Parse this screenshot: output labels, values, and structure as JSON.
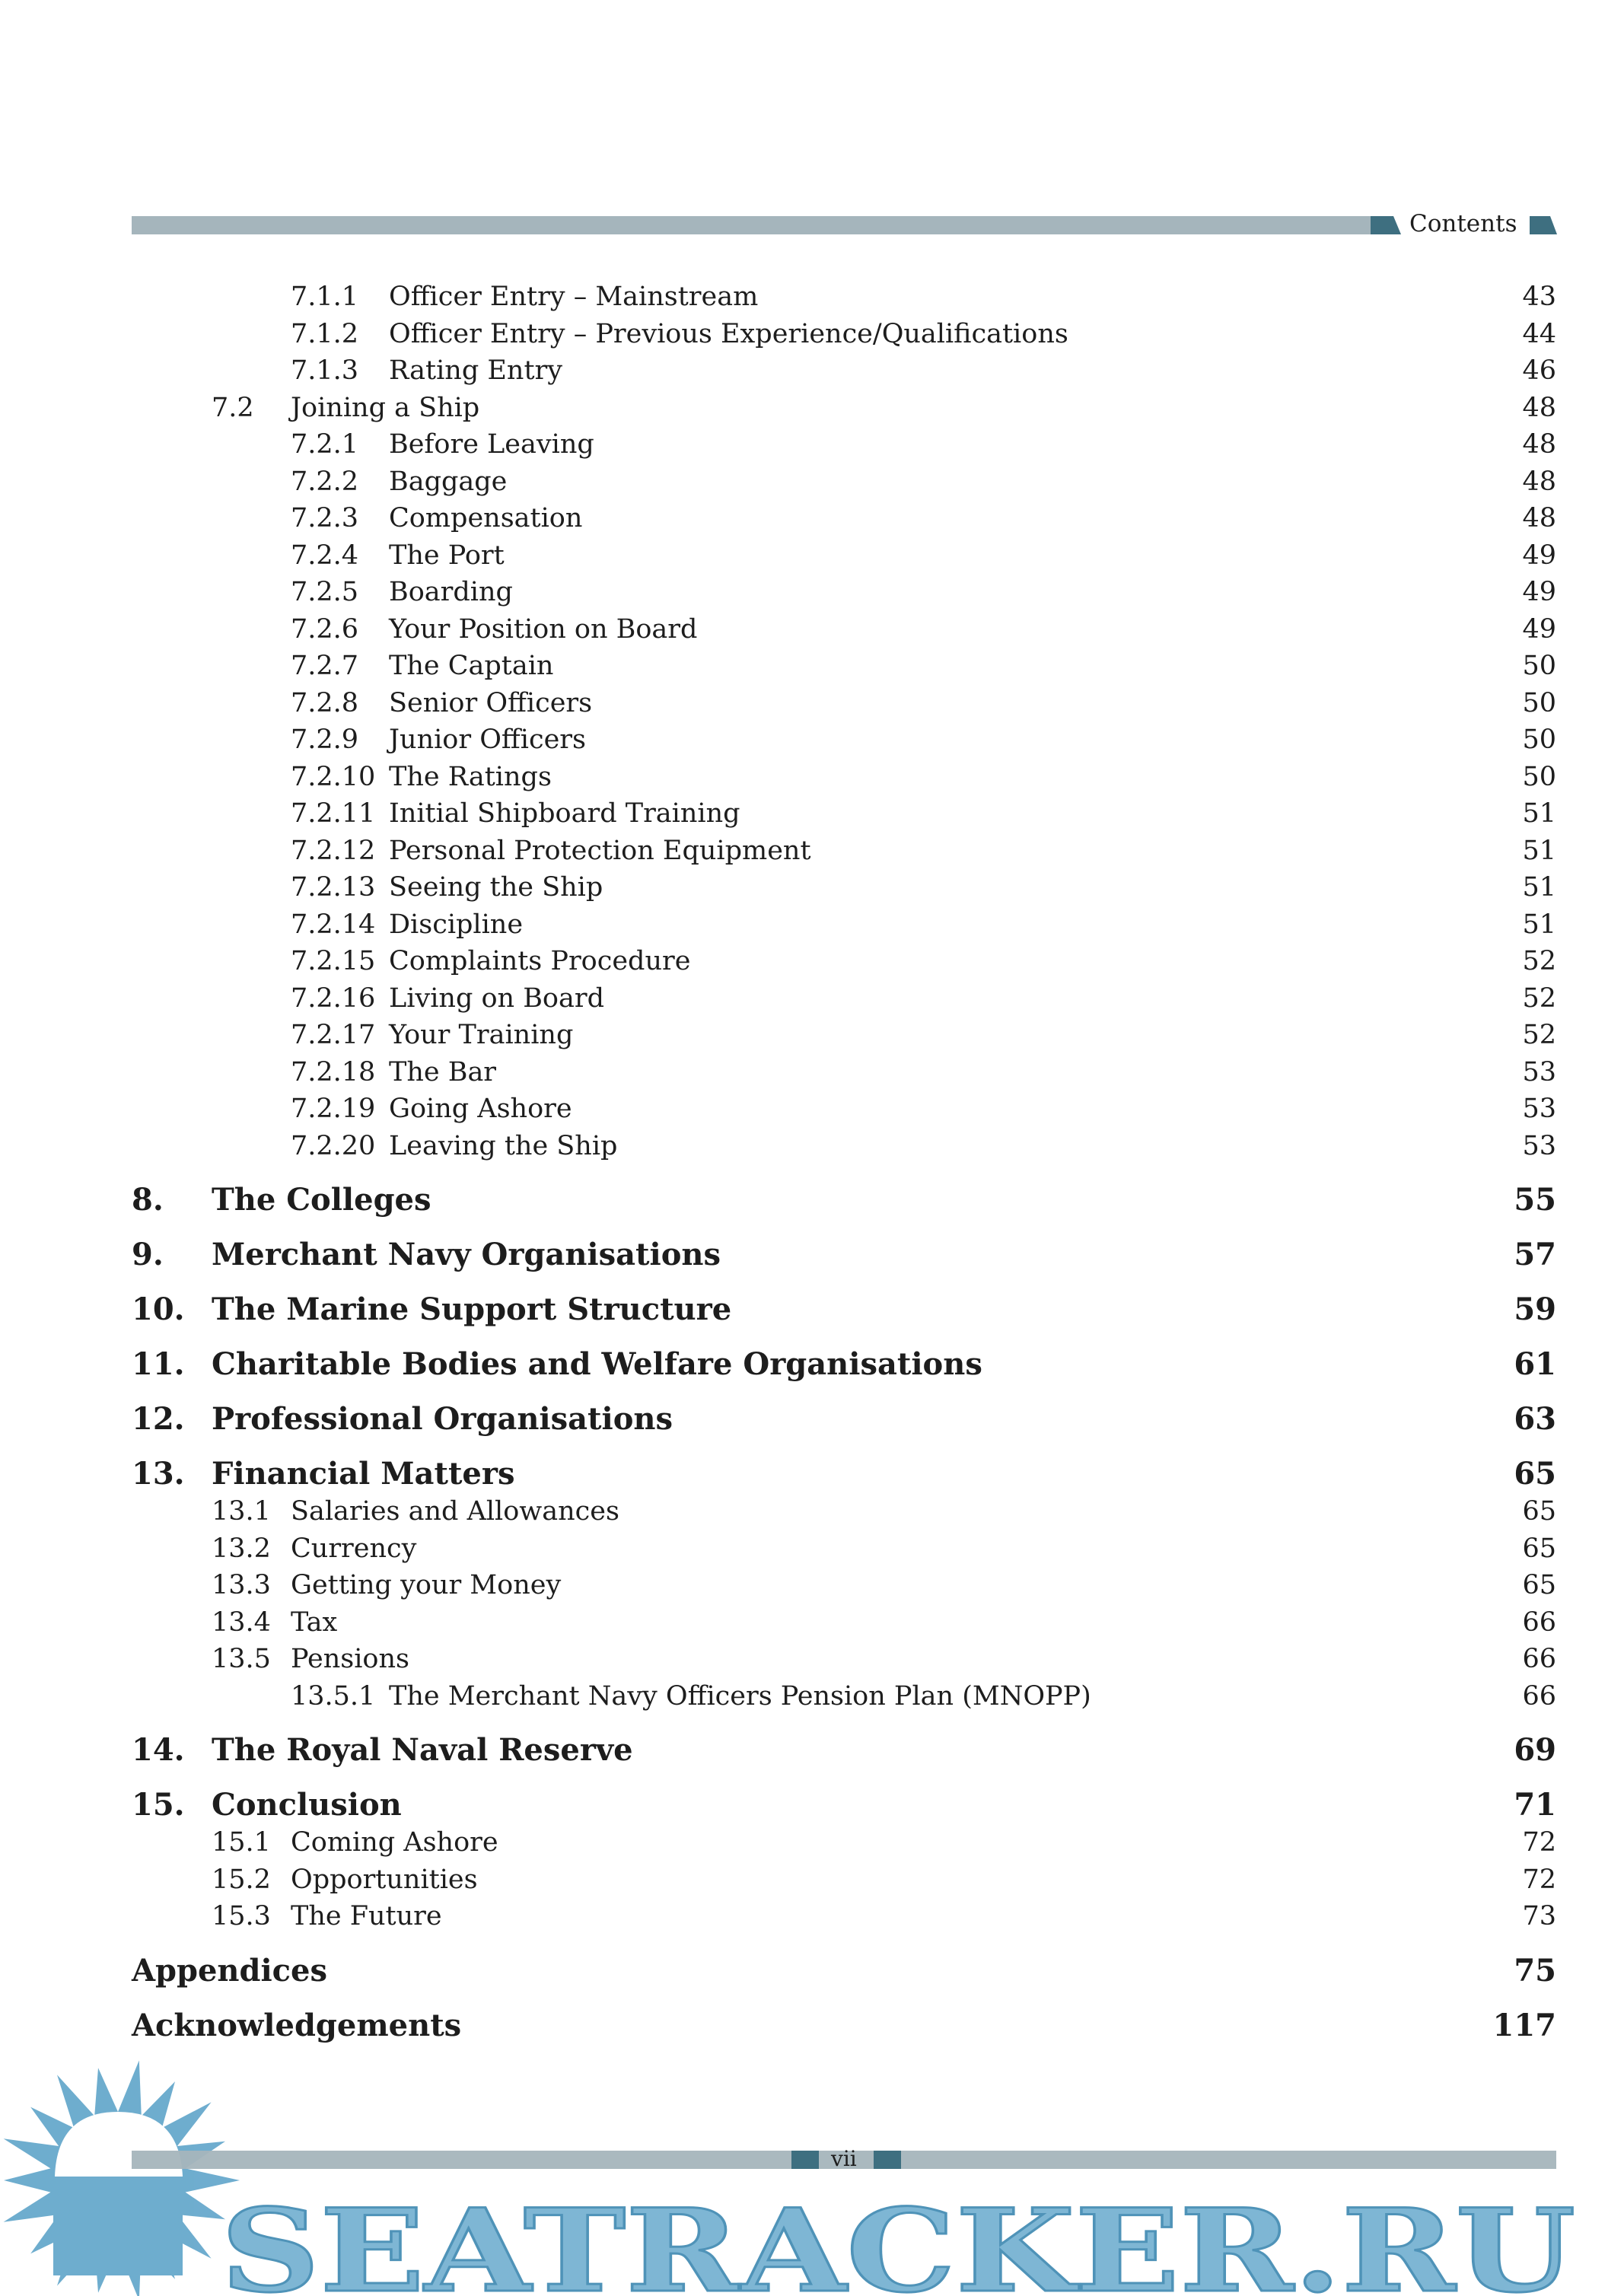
{
  "header": {
    "title": "Contents"
  },
  "entries": [
    {
      "level": 3,
      "num": "7.1.1",
      "text": "Officer Entry – Mainstream",
      "page": "43"
    },
    {
      "level": 3,
      "num": "7.1.2",
      "text": "Officer Entry – Previous Experience/Qualifications",
      "page": "44"
    },
    {
      "level": 3,
      "num": "7.1.3",
      "text": "Rating Entry",
      "page": "46"
    },
    {
      "level": 2,
      "num": "7.2",
      "text": "Joining a Ship",
      "page": "48"
    },
    {
      "level": 3,
      "num": "7.2.1",
      "text": "Before Leaving",
      "page": "48"
    },
    {
      "level": 3,
      "num": "7.2.2",
      "text": "Baggage",
      "page": "48"
    },
    {
      "level": 3,
      "num": "7.2.3",
      "text": "Compensation",
      "page": "48"
    },
    {
      "level": 3,
      "num": "7.2.4",
      "text": "The Port",
      "page": "49"
    },
    {
      "level": 3,
      "num": "7.2.5",
      "text": "Boarding",
      "page": "49"
    },
    {
      "level": 3,
      "num": "7.2.6",
      "text": "Your Position on Board",
      "page": "49"
    },
    {
      "level": 3,
      "num": "7.2.7",
      "text": "The Captain",
      "page": "50"
    },
    {
      "level": 3,
      "num": "7.2.8",
      "text": "Senior Officers",
      "page": "50"
    },
    {
      "level": 3,
      "num": "7.2.9",
      "text": "Junior Officers",
      "page": "50"
    },
    {
      "level": 3,
      "num": "7.2.10",
      "text": "The Ratings",
      "page": "50"
    },
    {
      "level": 3,
      "num": "7.2.11",
      "text": "Initial Shipboard Training",
      "page": "51"
    },
    {
      "level": 3,
      "num": "7.2.12",
      "text": "Personal Protection Equipment",
      "page": "51"
    },
    {
      "level": 3,
      "num": "7.2.13",
      "text": "Seeing the Ship",
      "page": "51"
    },
    {
      "level": 3,
      "num": "7.2.14",
      "text": "Discipline",
      "page": "51"
    },
    {
      "level": 3,
      "num": "7.2.15",
      "text": "Complaints Procedure",
      "page": "52"
    },
    {
      "level": 3,
      "num": "7.2.16",
      "text": "Living on Board",
      "page": "52"
    },
    {
      "level": 3,
      "num": "7.2.17",
      "text": "Your Training",
      "page": "52"
    },
    {
      "level": 3,
      "num": "7.2.18",
      "text": "The Bar",
      "page": "53"
    },
    {
      "level": 3,
      "num": "7.2.19",
      "text": "Going Ashore",
      "page": "53"
    },
    {
      "level": 3,
      "num": "7.2.20",
      "text": "Leaving the Ship",
      "page": "53"
    },
    {
      "level": 1,
      "num": "8.",
      "text": "The Colleges",
      "page": "55"
    },
    {
      "level": 1,
      "num": "9.",
      "text": "Merchant Navy Organisations",
      "page": "57"
    },
    {
      "level": 1,
      "num": "10.",
      "text": "The Marine Support Structure",
      "page": "59"
    },
    {
      "level": 1,
      "num": "11.",
      "text": "Charitable Bodies and Welfare Organisations",
      "page": "61"
    },
    {
      "level": 1,
      "num": "12.",
      "text": "Professional Organisations",
      "page": "63"
    },
    {
      "level": 1,
      "num": "13.",
      "text": "Financial Matters",
      "page": "65"
    },
    {
      "level": 2,
      "num": "13.1",
      "text": "Salaries and Allowances",
      "page": "65"
    },
    {
      "level": 2,
      "num": "13.2",
      "text": "Currency",
      "page": "65"
    },
    {
      "level": 2,
      "num": "13.3",
      "text": "Getting your Money",
      "page": "65"
    },
    {
      "level": 2,
      "num": "13.4",
      "text": "Tax",
      "page": "66"
    },
    {
      "level": 2,
      "num": "13.5",
      "text": "Pensions",
      "page": "66"
    },
    {
      "level": 3,
      "num": "13.5.1",
      "text": "The Merchant Navy Officers Pension Plan (MNOPP)",
      "page": "66"
    },
    {
      "level": 1,
      "num": "14.",
      "text": "The Royal Naval Reserve",
      "page": "69"
    },
    {
      "level": 1,
      "num": "15.",
      "text": "Conclusion",
      "page": "71"
    },
    {
      "level": 2,
      "num": "15.1",
      "text": "Coming Ashore",
      "page": "72"
    },
    {
      "level": 2,
      "num": "15.2",
      "text": "Opportunities",
      "page": "72"
    },
    {
      "level": 2,
      "num": "15.3",
      "text": "The Future",
      "page": "73"
    },
    {
      "level": 0,
      "num": "",
      "text": "Appendices",
      "page": "75"
    },
    {
      "level": 0,
      "num": "",
      "text": "Acknowledgements",
      "page": "117"
    }
  ],
  "footer": {
    "page_number": "vii"
  },
  "watermark": {
    "text": "SEATRACKER.RU",
    "color": "#67a9cc"
  },
  "colors": {
    "bar": "#a5b5bc",
    "accent": "#3e6f80"
  }
}
